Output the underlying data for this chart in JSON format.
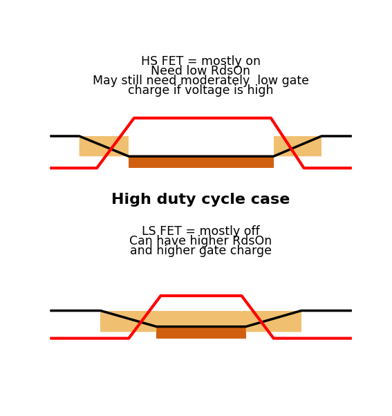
{
  "title_top1": "HS FET = mostly on",
  "title_top2": "Need low RdsOn",
  "title_top3": "May still need moderately  low gate",
  "title_top4": "charge if voltage is high",
  "title_center": "High duty cycle case",
  "title_bot1": "LS FET = mostly off",
  "title_bot2": "Can have higher RdsOn",
  "title_bot3": "and higher gate charge",
  "bg_color": "#ffffff",
  "tan_color": "#F0C070",
  "orange_color": "#D06010",
  "red_color": "#FF0000",
  "black_color": "#000000",
  "lw_wire": 2.5,
  "lw_red": 3.0,
  "fig_w": 5.67,
  "fig_h": 6.02,
  "dpi": 100
}
